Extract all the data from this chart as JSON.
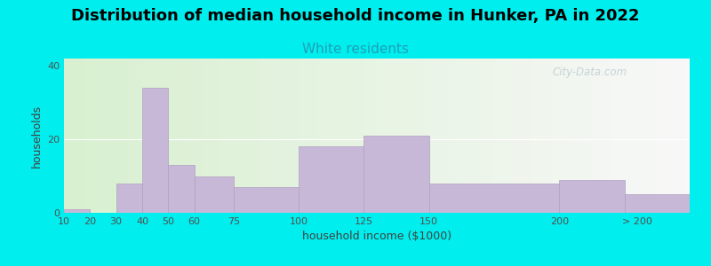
{
  "title": "Distribution of median household income in Hunker, PA in 2022",
  "subtitle": "White residents",
  "xlabel": "household income ($1000)",
  "ylabel": "households",
  "background_outer": "#00EEEE",
  "background_inner_left": "#d8f0d0",
  "background_inner_right": "#f8f8f8",
  "bar_color": "#c8b8d8",
  "bar_edge_color": "#b0a0c0",
  "title_fontsize": 13,
  "subtitle_fontsize": 11,
  "subtitle_color": "#20a0b8",
  "xlabel_fontsize": 9,
  "ylabel_fontsize": 9,
  "tick_positions": [
    10,
    20,
    30,
    40,
    50,
    60,
    75,
    100,
    125,
    150,
    200,
    230
  ],
  "tick_labels": [
    "10",
    "20",
    "30",
    "40",
    "50",
    "60",
    "75",
    "100",
    "125",
    "150",
    "200",
    "> 200"
  ],
  "bar_lefts": [
    10,
    20,
    30,
    40,
    50,
    60,
    75,
    100,
    125,
    150,
    200,
    225
  ],
  "bar_widths": [
    10,
    10,
    10,
    10,
    10,
    15,
    25,
    25,
    25,
    50,
    25,
    25
  ],
  "bar_heights": [
    1,
    0,
    8,
    34,
    13,
    10,
    7,
    18,
    21,
    8,
    9,
    5
  ],
  "xlim": [
    10,
    250
  ],
  "ylim": [
    0,
    42
  ],
  "yticks": [
    0,
    20,
    40
  ],
  "watermark": "City-Data.com"
}
